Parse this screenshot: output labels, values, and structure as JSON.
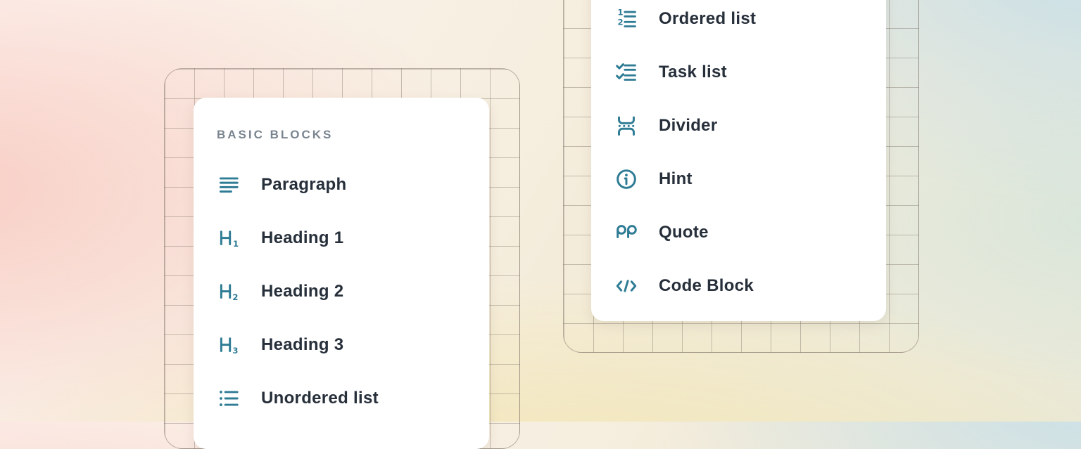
{
  "colors": {
    "icon_teal": "#2f7c95",
    "label_text": "#262f3a",
    "header_text": "#7a8590",
    "card_bg": "#ffffff"
  },
  "left_panel": {
    "header": "BASIC BLOCKS",
    "items": [
      {
        "icon": "paragraph",
        "label": "Paragraph"
      },
      {
        "icon": "heading-1",
        "label": "Heading 1"
      },
      {
        "icon": "heading-2",
        "label": "Heading 2"
      },
      {
        "icon": "heading-3",
        "label": "Heading 3"
      },
      {
        "icon": "unordered-list",
        "label": "Unordered list"
      }
    ]
  },
  "right_panel": {
    "items": [
      {
        "icon": "ordered-list",
        "label": "Ordered list"
      },
      {
        "icon": "task-list",
        "label": "Task list"
      },
      {
        "icon": "divider",
        "label": "Divider"
      },
      {
        "icon": "hint",
        "label": "Hint"
      },
      {
        "icon": "quote",
        "label": "Quote"
      },
      {
        "icon": "code-block",
        "label": "Code Block"
      }
    ]
  }
}
